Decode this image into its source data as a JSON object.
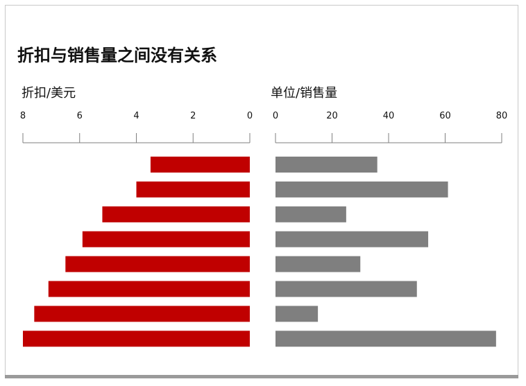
{
  "title": "折扣与销售量之间没有关系",
  "chart_data": [
    {
      "type": "bar",
      "orientation": "horizontal",
      "direction": "right-to-left",
      "ylabel": "折扣/美元",
      "xlim": [
        0,
        8
      ],
      "ticks": [
        "8",
        "6",
        "4",
        "2",
        "0"
      ],
      "tick_values": [
        8,
        6,
        4,
        2,
        0
      ],
      "values": [
        3.5,
        4.0,
        5.2,
        5.9,
        6.5,
        7.1,
        7.6,
        8.0
      ],
      "color": "#c00000",
      "grid": false,
      "legend": "none"
    },
    {
      "type": "bar",
      "orientation": "horizontal",
      "direction": "left-to-right",
      "ylabel": "单位/销售量",
      "xlim": [
        0,
        80
      ],
      "ticks": [
        "0",
        "20",
        "40",
        "60",
        "80"
      ],
      "tick_values": [
        0,
        20,
        40,
        60,
        80
      ],
      "values": [
        36,
        61,
        25,
        54,
        30,
        50,
        15,
        78
      ],
      "color": "#7f7f7f",
      "grid": false,
      "legend": "none"
    }
  ]
}
